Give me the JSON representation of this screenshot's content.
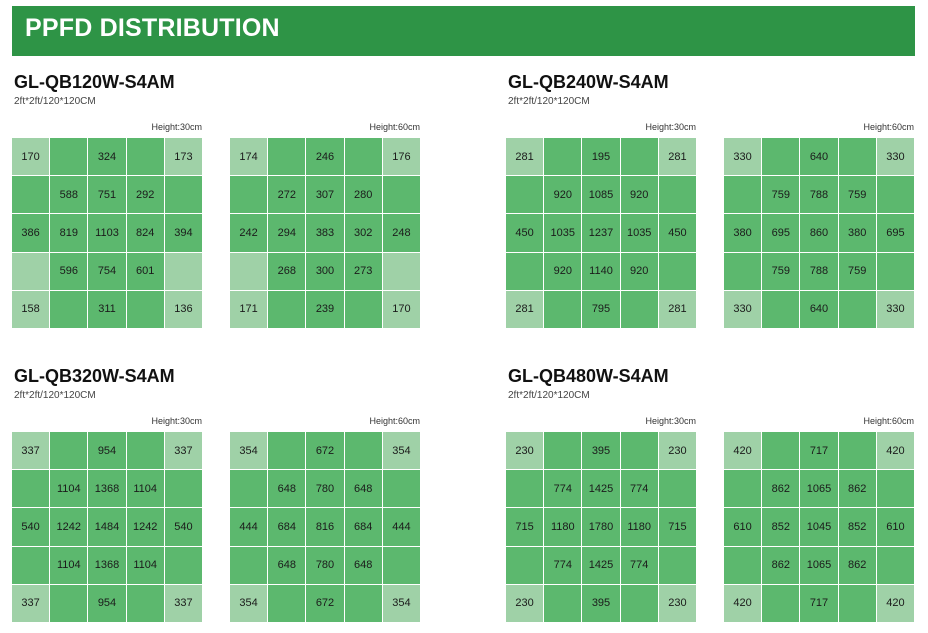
{
  "header": {
    "title": "PPFD DISTRIBUTION"
  },
  "colors": {
    "banner": "#2e9446",
    "cell_dark": "#5cb86e",
    "cell_light": "#9fd1a7"
  },
  "products": [
    {
      "model": "GL-QB120W-S4AM",
      "size": "2ft*2ft/120*120CM",
      "grids": [
        {
          "height_label": "Height:30cm",
          "rows": [
            [
              "170",
              "",
              "324",
              "",
              "173"
            ],
            [
              "",
              "588",
              "751",
              "292",
              ""
            ],
            [
              "386",
              "819",
              "1103",
              "824",
              "394"
            ],
            [
              "",
              "596",
              "754",
              "601",
              ""
            ],
            [
              "158",
              "",
              "311",
              "",
              "136"
            ]
          ]
        },
        {
          "height_label": "Height:60cm",
          "rows": [
            [
              "174",
              "",
              "246",
              "",
              "176"
            ],
            [
              "",
              "272",
              "307",
              "280",
              ""
            ],
            [
              "242",
              "294",
              "383",
              "302",
              "248"
            ],
            [
              "",
              "268",
              "300",
              "273",
              ""
            ],
            [
              "171",
              "",
              "239",
              "",
              "170"
            ]
          ]
        }
      ]
    },
    {
      "model": "GL-QB240W-S4AM",
      "size": "2ft*2ft/120*120CM",
      "grids": [
        {
          "height_label": "Height:30cm",
          "rows": [
            [
              "281",
              "",
              "195",
              "",
              "281"
            ],
            [
              "",
              "920",
              "1085",
              "920",
              ""
            ],
            [
              "450",
              "1035",
              "1237",
              "1035",
              "450"
            ],
            [
              "",
              "920",
              "1140",
              "920",
              ""
            ],
            [
              "281",
              "",
              "795",
              "",
              "281"
            ]
          ]
        },
        {
          "height_label": "Height:60cm",
          "rows": [
            [
              "330",
              "",
              "640",
              "",
              "330"
            ],
            [
              "",
              "759",
              "788",
              "759",
              ""
            ],
            [
              "380",
              "695",
              "860",
              "380",
              "695"
            ],
            [
              "",
              "759",
              "788",
              "759",
              ""
            ],
            [
              "330",
              "",
              "640",
              "",
              "330"
            ]
          ]
        }
      ]
    },
    {
      "model": "GL-QB320W-S4AM",
      "size": "2ft*2ft/120*120CM",
      "grids": [
        {
          "height_label": "Height:30cm",
          "rows": [
            [
              "337",
              "",
              "954",
              "",
              "337"
            ],
            [
              "",
              "1104",
              "1368",
              "1104",
              ""
            ],
            [
              "540",
              "1242",
              "1484",
              "1242",
              "540"
            ],
            [
              "",
              "1104",
              "1368",
              "1104",
              ""
            ],
            [
              "337",
              "",
              "954",
              "",
              "337"
            ]
          ]
        },
        {
          "height_label": "Height:60cm",
          "rows": [
            [
              "354",
              "",
              "672",
              "",
              "354"
            ],
            [
              "",
              "648",
              "780",
              "648",
              ""
            ],
            [
              "444",
              "684",
              "816",
              "684",
              "444"
            ],
            [
              "",
              "648",
              "780",
              "648",
              ""
            ],
            [
              "354",
              "",
              "672",
              "",
              "354"
            ]
          ]
        }
      ]
    },
    {
      "model": "GL-QB480W-S4AM",
      "size": "2ft*2ft/120*120CM",
      "grids": [
        {
          "height_label": "Height:30cm",
          "rows": [
            [
              "230",
              "",
              "395",
              "",
              "230"
            ],
            [
              "",
              "774",
              "1425",
              "774",
              ""
            ],
            [
              "715",
              "1180",
              "1780",
              "1180",
              "715"
            ],
            [
              "",
              "774",
              "1425",
              "774",
              ""
            ],
            [
              "230",
              "",
              "395",
              "",
              "230"
            ]
          ]
        },
        {
          "height_label": "Height:60cm",
          "rows": [
            [
              "420",
              "",
              "717",
              "",
              "420"
            ],
            [
              "",
              "862",
              "1065",
              "862",
              ""
            ],
            [
              "610",
              "852",
              "1045",
              "852",
              "610"
            ],
            [
              "",
              "862",
              "1065",
              "862",
              ""
            ],
            [
              "420",
              "",
              "717",
              "",
              "420"
            ]
          ]
        }
      ]
    }
  ]
}
